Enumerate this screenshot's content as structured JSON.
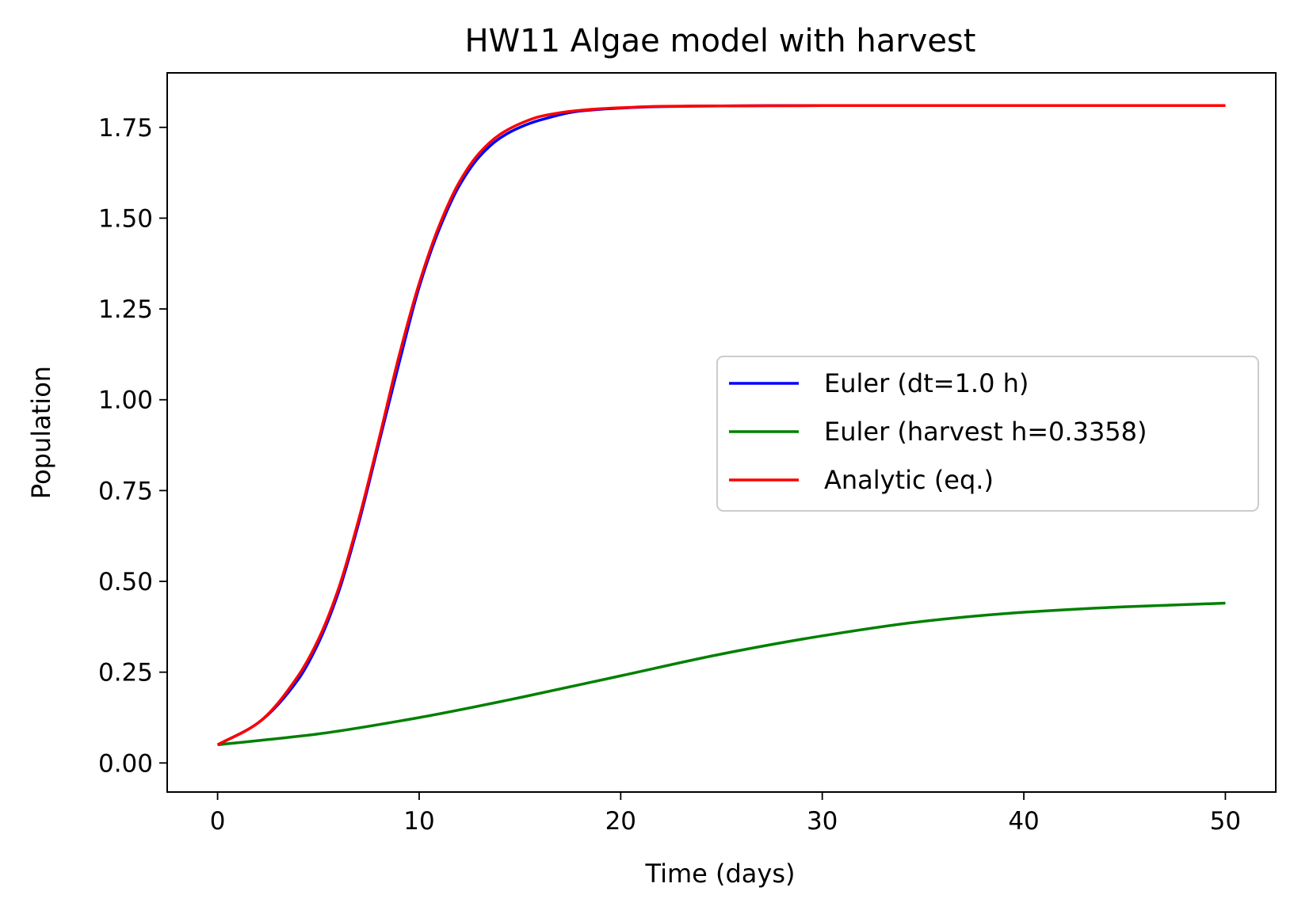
{
  "chart_data": {
    "type": "line",
    "title": "HW11 Algae model with harvest",
    "xlabel": "Time (days)",
    "ylabel": "Population",
    "xlim": [
      -2.5,
      52.5
    ],
    "ylim": [
      -0.08,
      1.9
    ],
    "xticks": [
      0,
      10,
      20,
      30,
      40,
      50
    ],
    "xtick_labels": [
      "0",
      "10",
      "20",
      "30",
      "40",
      "50"
    ],
    "yticks": [
      0.0,
      0.25,
      0.5,
      0.75,
      1.0,
      1.25,
      1.5,
      1.75
    ],
    "ytick_labels": [
      "0.00",
      "0.25",
      "0.50",
      "0.75",
      "1.00",
      "1.25",
      "1.50",
      "1.75"
    ],
    "grid": false,
    "legend_position": "center-right",
    "series": [
      {
        "name": "Euler (dt=1.0 h)",
        "color": "#0000ff",
        "x": [
          0,
          2,
          4,
          5,
          6,
          7,
          8,
          9,
          10,
          11,
          12,
          13,
          14,
          15,
          16,
          18,
          20,
          22,
          25,
          30,
          40,
          50
        ],
        "y": [
          0.05,
          0.11,
          0.23,
          0.33,
          0.47,
          0.66,
          0.88,
          1.1,
          1.31,
          1.47,
          1.59,
          1.67,
          1.72,
          1.75,
          1.77,
          1.795,
          1.803,
          1.807,
          1.809,
          1.81,
          1.81,
          1.81
        ]
      },
      {
        "name": "Euler (harvest h=0.3358)",
        "color": "#008000",
        "x": [
          0,
          5,
          10,
          15,
          20,
          25,
          30,
          35,
          40,
          45,
          50
        ],
        "y": [
          0.05,
          0.08,
          0.125,
          0.18,
          0.24,
          0.3,
          0.35,
          0.39,
          0.415,
          0.43,
          0.44
        ]
      },
      {
        "name": "Analytic (eq.)",
        "color": "#ff0000",
        "x": [
          0,
          2,
          4,
          5,
          6,
          7,
          8,
          9,
          10,
          11,
          12,
          13,
          14,
          15,
          16,
          18,
          20,
          22,
          25,
          30,
          40,
          50
        ],
        "y": [
          0.05,
          0.11,
          0.24,
          0.34,
          0.48,
          0.67,
          0.89,
          1.12,
          1.32,
          1.48,
          1.6,
          1.68,
          1.73,
          1.76,
          1.78,
          1.797,
          1.804,
          1.808,
          1.809,
          1.81,
          1.81,
          1.81
        ]
      }
    ]
  }
}
